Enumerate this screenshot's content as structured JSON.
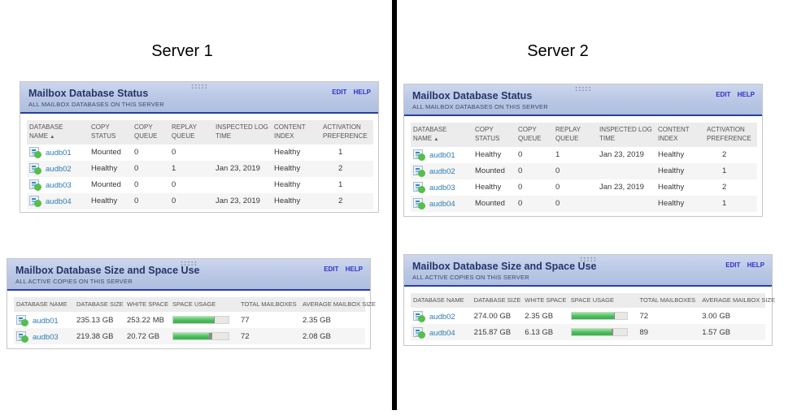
{
  "page": {
    "server1_title": "Server 1",
    "server2_title": "Server 2"
  },
  "icons": {
    "sort_ascending": "▲"
  },
  "colors": {
    "header_border": "#2b3f9c",
    "link_blue": "#2e7cb4",
    "edit_help_blue": "#2f31c6",
    "bar_green": "#44bb58",
    "status_dot_green": "#56bd4f"
  },
  "servers": [
    {
      "title": "Server 1",
      "status_widget": {
        "title": "Mailbox Database Status",
        "subtitle": "ALL MAILBOX DATABASES ON THIS SERVER",
        "edit_label": "EDIT",
        "help_label": "HELP",
        "columns": [
          "DATABASE NAME",
          "COPY STATUS",
          "COPY QUEUE",
          "REPLAY QUEUE",
          "INSPECTED LOG TIME",
          "CONTENT INDEX",
          "ACTIVATION PREFERENCE"
        ],
        "rows": [
          {
            "name": "audb01",
            "copy_status": "Mounted",
            "copy_queue": "0",
            "replay_queue": "0",
            "inspected_log_time": "",
            "content_index": "Healthy",
            "activation_preference": "1"
          },
          {
            "name": "audb02",
            "copy_status": "Healthy",
            "copy_queue": "0",
            "replay_queue": "1",
            "inspected_log_time": "Jan 23, 2019",
            "content_index": "Healthy",
            "activation_preference": "2"
          },
          {
            "name": "audb03",
            "copy_status": "Mounted",
            "copy_queue": "0",
            "replay_queue": "0",
            "inspected_log_time": "",
            "content_index": "Healthy",
            "activation_preference": "1"
          },
          {
            "name": "audb04",
            "copy_status": "Healthy",
            "copy_queue": "0",
            "replay_queue": "0",
            "inspected_log_time": "Jan 23, 2019",
            "content_index": "Healthy",
            "activation_preference": "2"
          }
        ]
      },
      "size_widget": {
        "title": "Mailbox Database Size and Space Use",
        "subtitle": "ALL ACTIVE COPIES ON THIS SERVER",
        "edit_label": "EDIT",
        "help_label": "HELP",
        "columns": [
          "DATABASE NAME",
          "DATABASE SIZE",
          "WHITE SPACE",
          "SPACE USAGE",
          "TOTAL MAILBOXES",
          "AVERAGE MAILBOX SIZE"
        ],
        "rows": [
          {
            "name": "audb01",
            "database_size": "235.13 GB",
            "white_space": "253.22 MB",
            "usage_green_pct": 74,
            "usage_gray_pct": 1,
            "total_mailboxes": "77",
            "average_mailbox_size": "2.35 GB"
          },
          {
            "name": "audb03",
            "database_size": "219.38 GB",
            "white_space": "20.72 GB",
            "usage_green_pct": 64,
            "usage_gray_pct": 7,
            "total_mailboxes": "72",
            "average_mailbox_size": "2.08 GB"
          }
        ]
      }
    },
    {
      "title": "Server 2",
      "status_widget": {
        "title": "Mailbox Database Status",
        "subtitle": "ALL MAILBOX DATABASES ON THIS SERVER",
        "edit_label": "EDIT",
        "help_label": "HELP",
        "columns": [
          "DATABASE NAME",
          "COPY STATUS",
          "COPY QUEUE",
          "REPLAY QUEUE",
          "INSPECTED LOG TIME",
          "CONTENT INDEX",
          "ACTIVATION PREFERENCE"
        ],
        "rows": [
          {
            "name": "audb01",
            "copy_status": "Healthy",
            "copy_queue": "0",
            "replay_queue": "1",
            "inspected_log_time": "Jan 23, 2019",
            "content_index": "Healthy",
            "activation_preference": "2"
          },
          {
            "name": "audb02",
            "copy_status": "Mounted",
            "copy_queue": "0",
            "replay_queue": "0",
            "inspected_log_time": "",
            "content_index": "Healthy",
            "activation_preference": "1"
          },
          {
            "name": "audb03",
            "copy_status": "Healthy",
            "copy_queue": "0",
            "replay_queue": "0",
            "inspected_log_time": "Jan 23, 2019",
            "content_index": "Healthy",
            "activation_preference": "2"
          },
          {
            "name": "audb04",
            "copy_status": "Mounted",
            "copy_queue": "0",
            "replay_queue": "0",
            "inspected_log_time": "",
            "content_index": "Healthy",
            "activation_preference": "1"
          }
        ]
      },
      "size_widget": {
        "title": "Mailbox Database Size and Space Use",
        "subtitle": "ALL ACTIVE COPIES ON THIS SERVER",
        "edit_label": "EDIT",
        "help_label": "HELP",
        "columns": [
          "DATABASE NAME",
          "DATABASE SIZE",
          "WHITE SPACE",
          "SPACE USAGE",
          "TOTAL MAILBOXES",
          "AVERAGE MAILBOX SIZE"
        ],
        "rows": [
          {
            "name": "audb02",
            "database_size": "274.00 GB",
            "white_space": "2.35 GB",
            "usage_green_pct": 77,
            "usage_gray_pct": 2,
            "total_mailboxes": "72",
            "average_mailbox_size": "3.00 GB"
          },
          {
            "name": "audb04",
            "database_size": "215.87 GB",
            "white_space": "6.13 GB",
            "usage_green_pct": 72,
            "usage_gray_pct": 3,
            "total_mailboxes": "89",
            "average_mailbox_size": "1.57 GB"
          }
        ]
      }
    }
  ]
}
